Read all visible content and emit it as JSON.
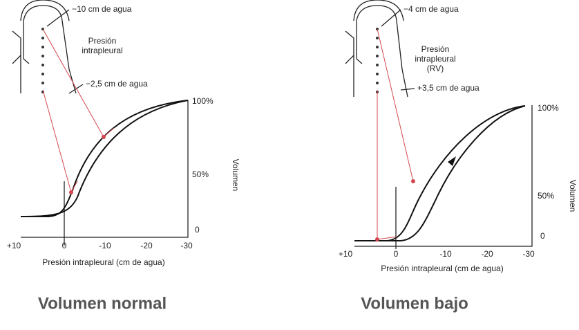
{
  "panels": [
    {
      "top_pressure": "−10 cm de agua",
      "pleural_label": [
        "Presión",
        "intrapleural"
      ],
      "bottom_pressure": "−2,5 cm de agua",
      "y_ticks": [
        "100%",
        "50%",
        "0"
      ],
      "y_label": "Volumen",
      "x_ticks": [
        "+10",
        "0",
        "-10",
        "-20",
        "-30"
      ],
      "x_label": "Presión intrapleural (cm de agua)",
      "caption": "Volumen normal"
    },
    {
      "top_pressure": "−4 cm de agua",
      "pleural_label": [
        "Presión",
        "intrapleural",
        "(RV)"
      ],
      "bottom_pressure": "+3,5 cm de agua",
      "y_ticks": [
        "100%",
        "50%",
        "0"
      ],
      "y_label": "Volumen",
      "x_ticks": [
        "+10",
        "0",
        "-10",
        "-20",
        "-30"
      ],
      "x_label": "Presión intrapleural (cm de agua)",
      "caption": "Volumen bajo"
    }
  ]
}
